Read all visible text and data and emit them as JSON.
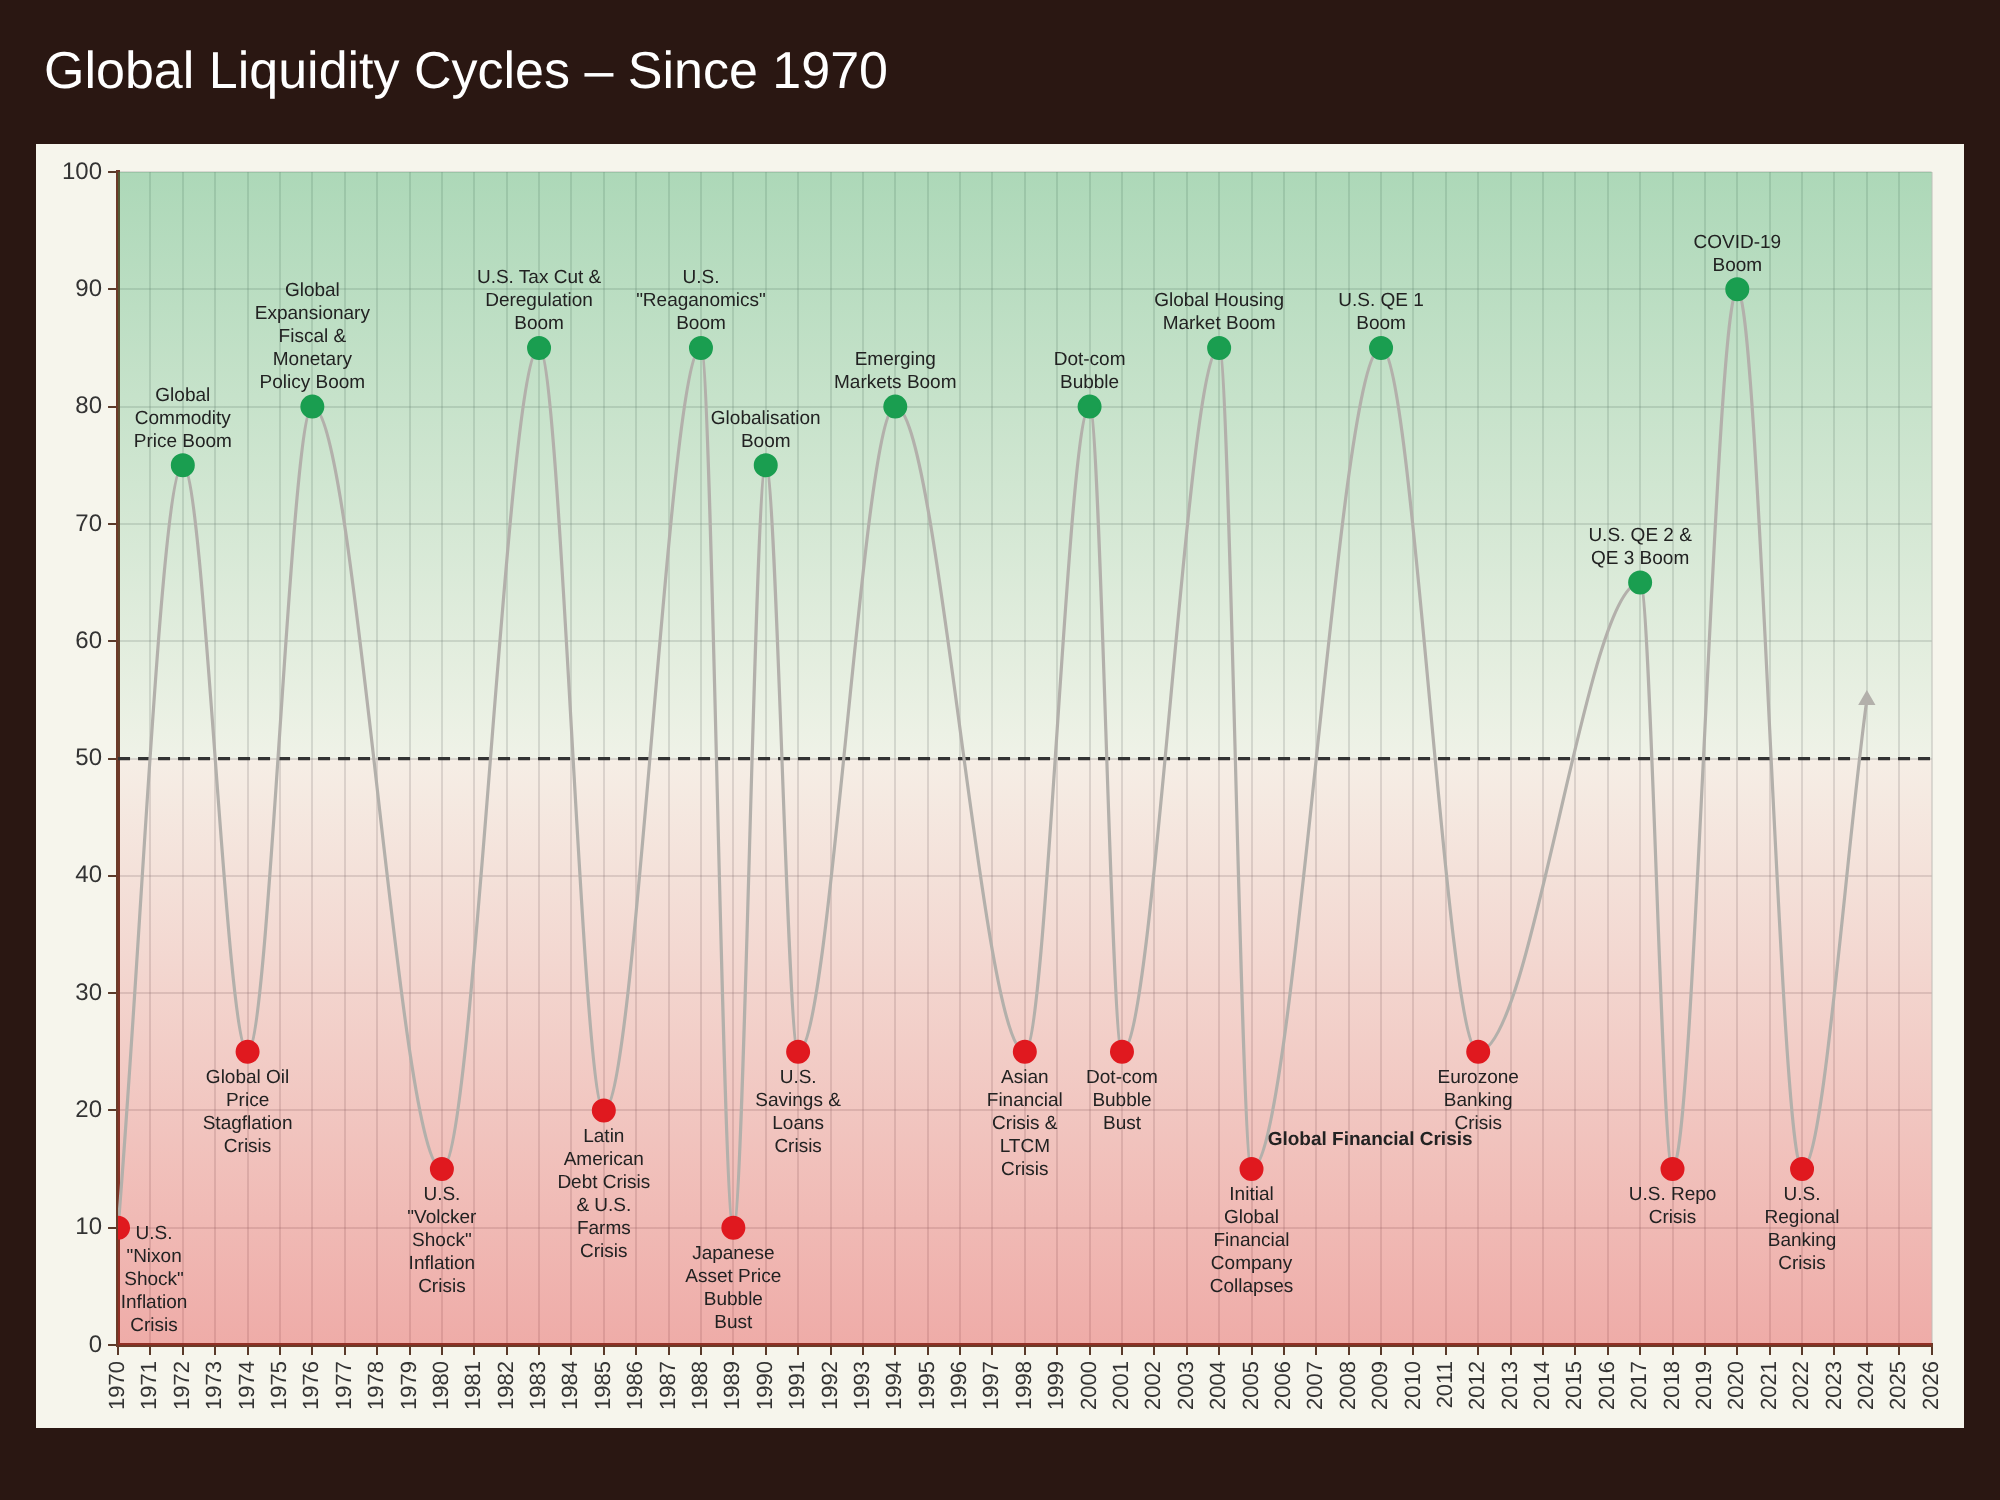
{
  "chart_data": {
    "type": "line",
    "title": "Global Liquidity Cycles – Since 1970",
    "x": [
      1970,
      1972,
      1974,
      1976,
      1980,
      1983,
      1985,
      1988,
      1989,
      1990,
      1991,
      1994,
      1998,
      2000,
      2001,
      2004,
      2005,
      2009,
      2012,
      2017,
      2018,
      2020,
      2022,
      2024
    ],
    "series": [
      {
        "color": "#b3b0ab",
        "values": [
          10,
          75,
          25,
          80,
          15,
          85,
          20,
          85,
          10,
          75,
          25,
          80,
          25,
          80,
          25,
          85,
          15,
          85,
          25,
          65,
          15,
          90,
          15,
          55
        ],
        "colors": [
          "#e0191f",
          "#1a9e50",
          "#e0191f",
          "#1a9e50",
          "#e0191f",
          "#1a9e50",
          "#e0191f",
          "#1a9e50",
          "#e0191f",
          "#1a9e50",
          "#e0191f",
          "#1a9e50",
          "#e0191f",
          "#1a9e50",
          "#e0191f",
          "#1a9e50",
          "#e0191f",
          "#1a9e50",
          "#e0191f",
          "#1a9e50",
          "#e0191f",
          "#1a9e50",
          "#e0191f",
          "#b3b0ab"
        ]
      }
    ],
    "xlim": [
      1970,
      2026
    ],
    "xticks": [
      1970,
      1971,
      1972,
      1973,
      1974,
      1975,
      1976,
      1977,
      1978,
      1979,
      1980,
      1981,
      1982,
      1983,
      1984,
      1985,
      1986,
      1987,
      1988,
      1989,
      1990,
      1991,
      1992,
      1993,
      1994,
      1995,
      1996,
      1997,
      1998,
      1999,
      2000,
      2001,
      2002,
      2003,
      2004,
      2005,
      2006,
      2007,
      2008,
      2009,
      2010,
      2011,
      2012,
      2013,
      2014,
      2015,
      2016,
      2017,
      2018,
      2019,
      2020,
      2021,
      2022,
      2023,
      2024,
      2025,
      2026
    ],
    "ylim": [
      0,
      100
    ],
    "yticks": [
      0,
      10,
      20,
      30,
      40,
      50,
      60,
      70,
      80,
      90,
      100
    ],
    "grid": true,
    "legend": false,
    "marker": "circle",
    "line_style": "solid",
    "ref_lines": [
      {
        "axis": "y",
        "value": 50,
        "label": null,
        "color": "#333333",
        "line_style": "dashed"
      }
    ],
    "bands": [
      {
        "axis": "y",
        "from": 50,
        "to": 100,
        "label": null,
        "color": "#1a9e50"
      },
      {
        "axis": "y",
        "from": 0,
        "to": 50,
        "label": null,
        "color": "#e0191f"
      }
    ],
    "annotations": [
      {
        "text": "U.S. \"Nixon Shock\" Inflation Crisis",
        "x": 1970,
        "y": 10
      },
      {
        "text": "Global Commodity Price Boom",
        "x": 1972,
        "y": 75
      },
      {
        "text": "Global Oil Price Stagflation Crisis",
        "x": 1974,
        "y": 25
      },
      {
        "text": "Global Expansionary Fiscal & Monetary Policy Boom",
        "x": 1976,
        "y": 80
      },
      {
        "text": "U.S. \"Volcker Shock\" Inflation Crisis",
        "x": 1980,
        "y": 15
      },
      {
        "text": "U.S. Tax Cut & Deregulation Boom",
        "x": 1983,
        "y": 85
      },
      {
        "text": "Latin American Debt Crisis & U.S. Farms Crisis",
        "x": 1985,
        "y": 20
      },
      {
        "text": "U.S. \"Reaganomics\" Boom",
        "x": 1988,
        "y": 85
      },
      {
        "text": "Japanese Asset Price Bubble Bust",
        "x": 1989,
        "y": 10
      },
      {
        "text": "Globalisation Boom",
        "x": 1990,
        "y": 75
      },
      {
        "text": "U.S. Savings & Loans Crisis",
        "x": 1991,
        "y": 25
      },
      {
        "text": "Emerging Markets Boom",
        "x": 1994,
        "y": 80
      },
      {
        "text": "Asian Financial Crisis & LTCM Crisis",
        "x": 1998,
        "y": 25
      },
      {
        "text": "Dot-com Bubble",
        "x": 2000,
        "y": 80
      },
      {
        "text": "Dot-com Bubble Bust",
        "x": 2001,
        "y": 25
      },
      {
        "text": "Global Housing Market Boom",
        "x": 2004,
        "y": 85
      },
      {
        "text": "Initial Global Financial Company Collapses",
        "x": 2005,
        "y": 15
      },
      {
        "text": "Global Financial Crisis",
        "x": 2005.5,
        "y": 17.5
      },
      {
        "text": "U.S. QE 1 Boom",
        "x": 2009,
        "y": 85
      },
      {
        "text": "Eurozone Banking Crisis",
        "x": 2012,
        "y": 25
      },
      {
        "text": "U.S. QE 2 & QE 3 Boom",
        "x": 2017,
        "y": 65
      },
      {
        "text": "U.S. Repo Crisis",
        "x": 2018,
        "y": 15
      },
      {
        "text": "COVID-19 Boom",
        "x": 2020,
        "y": 90
      },
      {
        "text": "U.S. Regional Banking Crisis",
        "x": 2022,
        "y": 15
      }
    ]
  }
}
